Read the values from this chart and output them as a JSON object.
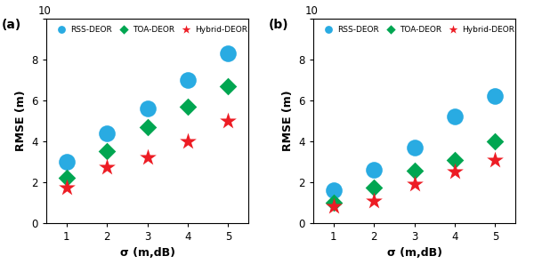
{
  "subplot_a": {
    "label": "(a)",
    "x": [
      1,
      2,
      3,
      4,
      5
    ],
    "rss": [
      3.0,
      4.4,
      5.6,
      7.0,
      8.3
    ],
    "toa": [
      2.2,
      3.5,
      4.7,
      5.7,
      6.7
    ],
    "hybrid": [
      1.75,
      2.75,
      3.2,
      4.0,
      5.0
    ],
    "ylim": [
      0,
      10
    ],
    "yticks": [
      0,
      2,
      4,
      6,
      8,
      10
    ]
  },
  "subplot_b": {
    "label": "(b)",
    "x": [
      1,
      2,
      3,
      4,
      5
    ],
    "rss": [
      1.6,
      2.6,
      3.7,
      5.2,
      6.2
    ],
    "toa": [
      1.0,
      1.75,
      2.55,
      3.1,
      4.0
    ],
    "hybrid": [
      0.8,
      1.1,
      1.9,
      2.5,
      3.1
    ],
    "ylim": [
      0,
      10
    ],
    "yticks": [
      0,
      2,
      4,
      6,
      8,
      10
    ]
  },
  "colors": {
    "rss": "#29ABE2",
    "toa": "#00A651",
    "hybrid": "#ED1C24"
  },
  "legend_labels": [
    "RSS-DEOR",
    "TOA-DEOR",
    "Hybrid-DEOR"
  ],
  "xlabel": "σ (m,dB)",
  "ylabel": "RMSE (m)",
  "rss_marker_size": 180,
  "toa_marker_size": 100,
  "hybrid_marker_size": 200
}
